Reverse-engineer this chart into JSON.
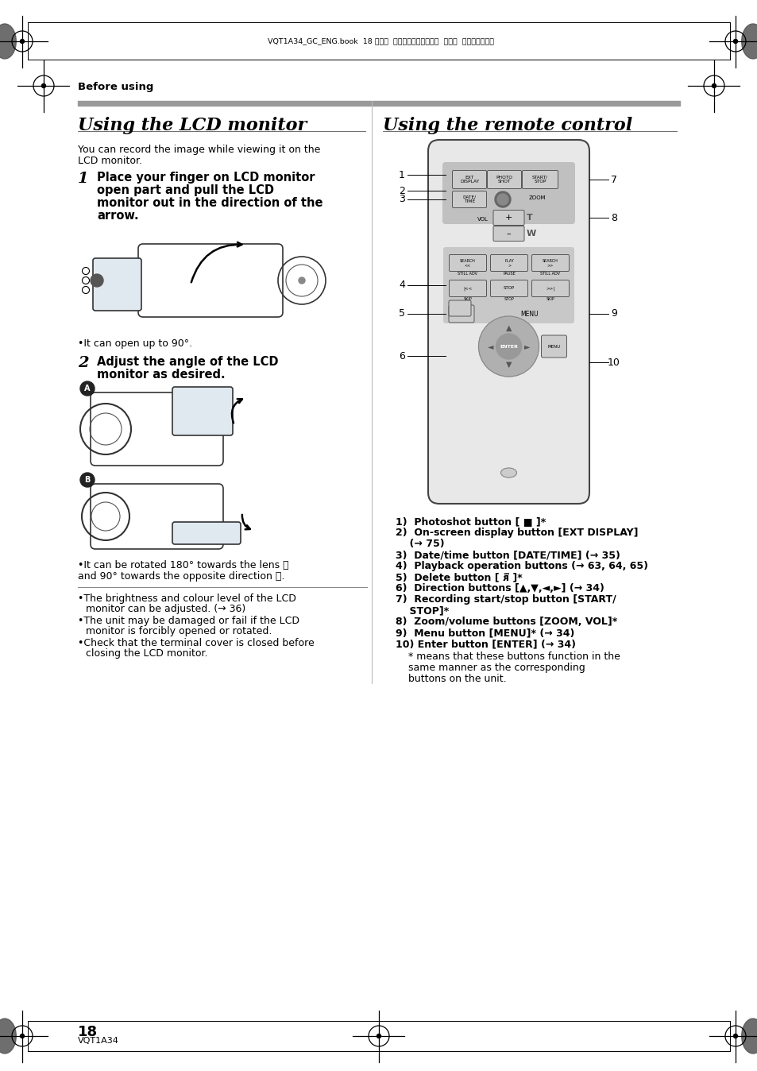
{
  "bg_color": "#ffffff",
  "header_text": "VQT1A34_GC_ENG.book  18 ページ  ２００７年１月２７日  土曜日  午後１時４６分",
  "section_label": "Before using",
  "title_left": "Using the LCD monitor",
  "title_right": "Using the remote control",
  "footer_page": "18",
  "footer_model": "VQT1A34",
  "left_body_line1": "You can record the image while viewing it on the",
  "left_body_line2": "LCD monitor.",
  "step1_num": "1",
  "step1_text_line1": "Place your finger on LCD monitor",
  "step1_text_line2": "open part and pull the LCD",
  "step1_text_line3": "monitor out in the direction of the",
  "step1_text_line4": "arrow.",
  "step1_note": "•It can open up to 90°.",
  "step2_num": "2",
  "step2_text_line1": "Adjust the angle of the LCD",
  "step2_text_line2": "monitor as desired.",
  "step2_note1": "•It can be rotated 180° towards the lens Ⓐ",
  "step2_note2": "and 90° towards the opposite direction Ⓑ.",
  "bullet1_line1": "•The brightness and colour level of the LCD",
  "bullet1_line2": "monitor can be adjusted. (→ 36)",
  "bullet2_line1": "•The unit may be damaged or fail if the LCD",
  "bullet2_line2": "monitor is forcibly opened or rotated.",
  "bullet3_line1": "•Check that the terminal cover is closed before",
  "bullet3_line2": "closing the LCD monitor.",
  "remote_num_labels": [
    "1",
    "2",
    "3",
    "4",
    "5",
    "6",
    "7",
    "8",
    "9",
    "10"
  ],
  "list_item1_bold": "1)  Photoshot button [ ■ ]*",
  "list_item2_bold": "2)  On-screen display button [EXT DISPLAY]",
  "list_item2_cont": "    (→ 75)",
  "list_item3_bold": "3)  Date/time button [DATE/TIME] (→ 35)",
  "list_item4_bold": "4)  Playback operation buttons (→ 63, 64, 65)",
  "list_item5_bold": "5)  Delete button [ ᴙ̅ ]*",
  "list_item6_bold": "6)  Direction buttons [▲,▼,◄,►] (→ 34)",
  "list_item7_bold": "7)  Recording start/stop button [START/",
  "list_item7_cont": "    STOP]*",
  "list_item8_bold": "8)  Zoom/volume buttons [ZOOM, VOL]*",
  "list_item9_bold": "9)  Menu button [MENU]* (→ 34)",
  "list_item10_bold": "10) Enter button [ENTER] (→ 34)",
  "note_star": "* means that these buttons function in the",
  "note_star2": "same manner as the corresponding",
  "note_star3": "buttons on the unit.",
  "divider_gray": "#999999",
  "remote_bg": "#e8e8e8",
  "remote_edge": "#444444",
  "btn_bg": "#cccccc",
  "btn_edge": "#555555",
  "dpad_outer": "#aaaaaa",
  "dpad_inner": "#888888",
  "zoom_btn_color": "#888888"
}
